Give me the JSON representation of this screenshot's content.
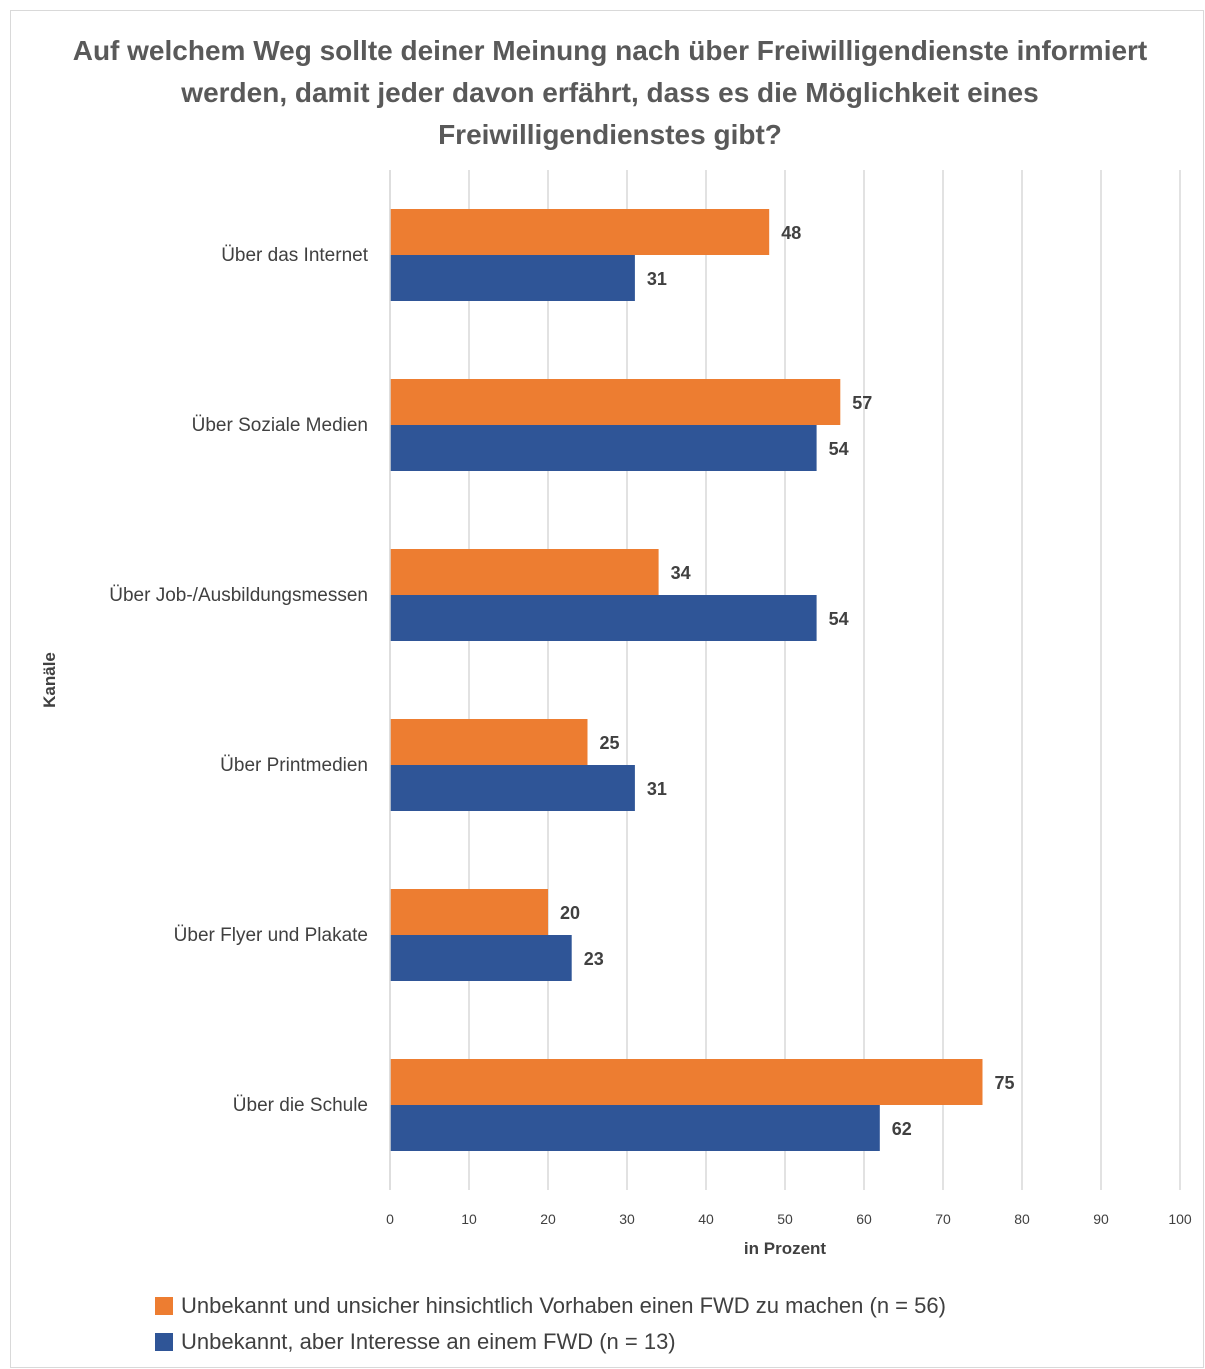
{
  "colors": {
    "series1": "#ED7D31",
    "series2": "#2F5597",
    "grid": "#d9d9d9",
    "text": "#404040"
  },
  "chart_data": {
    "type": "bar",
    "orientation": "horizontal",
    "title": "Auf welchem Weg sollte deiner Meinung nach über Freiwilligendienste informiert werden, damit jeder davon erfährt, dass es die Möglichkeit eines Freiwilligendienstes gibt?",
    "xlabel": "in Prozent",
    "ylabel": "Kanäle",
    "xlim": [
      0,
      100
    ],
    "xticks": [
      0,
      10,
      20,
      30,
      40,
      50,
      60,
      70,
      80,
      90,
      100
    ],
    "grid": true,
    "legend_position": "bottom",
    "categories": [
      "Über das Internet",
      "Über Soziale Medien",
      "Über Job-/Ausbildungsmessen",
      "Über Printmedien",
      "Über Flyer und Plakate",
      "Über die Schule"
    ],
    "series": [
      {
        "name": "Unbekannt und unsicher hinsichtlich Vorhaben einen FWD zu machen (n = 56)",
        "values": [
          48,
          57,
          34,
          25,
          20,
          75
        ]
      },
      {
        "name": "Unbekannt, aber Interesse an einem FWD (n = 13)",
        "values": [
          31,
          54,
          54,
          31,
          23,
          62
        ]
      }
    ]
  }
}
